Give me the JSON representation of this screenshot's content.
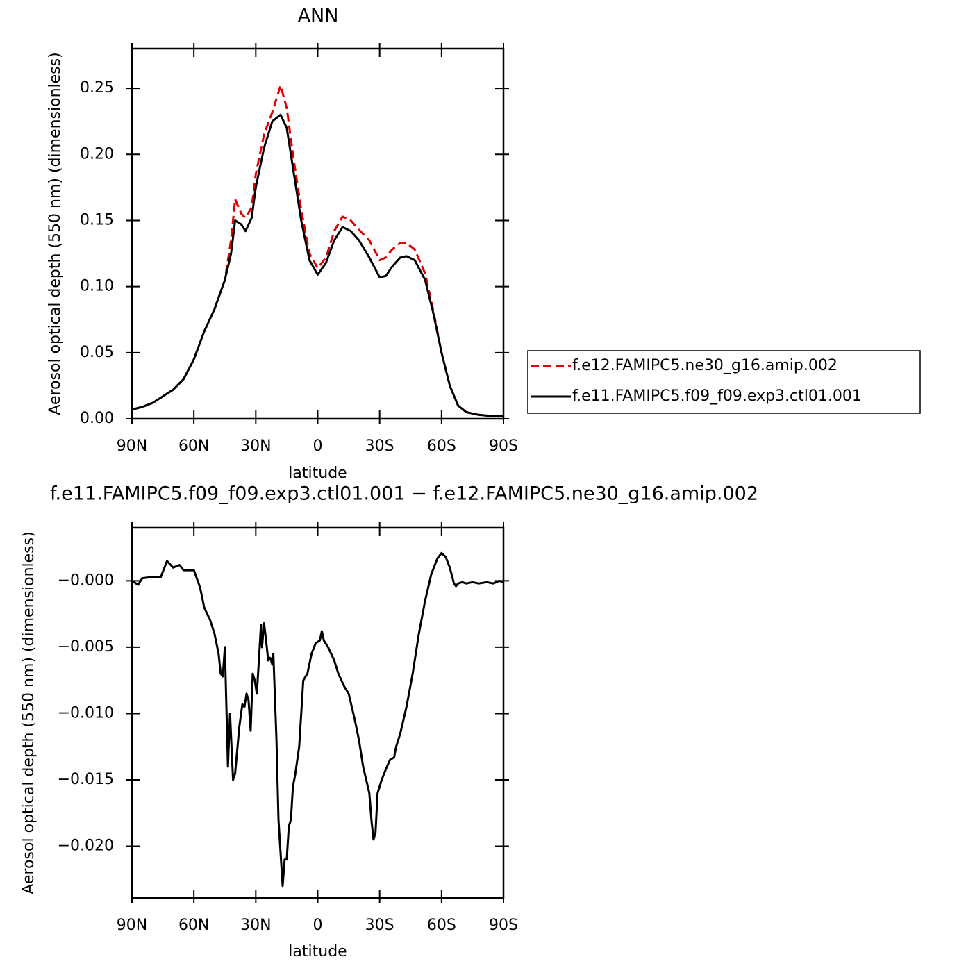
{
  "chart_data": [
    {
      "type": "line",
      "title": "ANN",
      "xlabel": "latitude",
      "ylabel": "Aerosol optical depth (550 nm) (dimensionless)",
      "xlim": [
        90,
        -90
      ],
      "xticks": [
        {
          "value": 90,
          "label": "90N"
        },
        {
          "value": 60,
          "label": "60N"
        },
        {
          "value": 30,
          "label": "30N"
        },
        0,
        {
          "value": -30,
          "label": "30S"
        },
        {
          "value": -60,
          "label": "60S"
        },
        {
          "value": -90,
          "label": "90S"
        }
      ],
      "ylim": [
        0,
        0.28
      ],
      "yticks": [
        {
          "value": 0,
          "label": "0.00"
        },
        {
          "value": 0.05,
          "label": "0.05"
        },
        {
          "value": 0.1,
          "label": "0.10"
        },
        {
          "value": 0.15,
          "label": "0.15"
        },
        {
          "value": 0.2,
          "label": "0.20"
        },
        {
          "value": 0.25,
          "label": "0.25"
        }
      ],
      "x": [
        90,
        85,
        80,
        75,
        70,
        65,
        60,
        55,
        50,
        45,
        42,
        40,
        37,
        35,
        32,
        30,
        26,
        22,
        18,
        15,
        12,
        8,
        4,
        0,
        -4,
        -8,
        -12,
        -16,
        -20,
        -25,
        -30,
        -33,
        -36,
        -40,
        -43,
        -47,
        -52,
        -56,
        -60,
        -64,
        -68,
        -72,
        -78,
        -85,
        -90
      ],
      "legend": "right",
      "series": [
        {
          "name": "f.e12.FAMIPC5.ne30_g16.amip.002",
          "color": "#dd0000",
          "line_style": "dashed",
          "values": [
            0.007,
            0.009,
            0.012,
            0.017,
            0.022,
            0.03,
            0.045,
            0.066,
            0.083,
            0.105,
            0.135,
            0.166,
            0.155,
            0.152,
            0.16,
            0.185,
            0.215,
            0.232,
            0.252,
            0.235,
            0.2,
            0.158,
            0.125,
            0.114,
            0.122,
            0.142,
            0.153,
            0.15,
            0.143,
            0.135,
            0.12,
            0.122,
            0.128,
            0.133,
            0.133,
            0.128,
            0.11,
            0.082,
            0.05,
            0.025,
            0.01,
            0.005,
            0.003,
            0.002,
            0.002
          ]
        },
        {
          "name": "f.e11.FAMIPC5.f09_f09.exp3.ctl01.001",
          "color": "#000000",
          "line_style": "solid",
          "values": [
            0.007,
            0.009,
            0.012,
            0.017,
            0.022,
            0.03,
            0.045,
            0.066,
            0.083,
            0.105,
            0.125,
            0.15,
            0.147,
            0.142,
            0.152,
            0.175,
            0.205,
            0.225,
            0.23,
            0.22,
            0.19,
            0.15,
            0.12,
            0.109,
            0.118,
            0.135,
            0.145,
            0.142,
            0.135,
            0.122,
            0.107,
            0.108,
            0.115,
            0.122,
            0.123,
            0.12,
            0.105,
            0.08,
            0.05,
            0.025,
            0.01,
            0.005,
            0.003,
            0.002,
            0.002
          ]
        }
      ]
    },
    {
      "type": "line",
      "title": "f.e11.FAMIPC5.f09_f09.exp3.ctl01.001 − f.e12.FAMIPC5.ne30_g16.amip.002",
      "xlabel": "latitude",
      "ylabel": "Aerosol optical depth (550 nm) (dimensionless)",
      "xlim": [
        90,
        -90
      ],
      "xticks": [
        {
          "value": 90,
          "label": "90N"
        },
        {
          "value": 60,
          "label": "60N"
        },
        {
          "value": 30,
          "label": "30N"
        },
        0,
        {
          "value": -30,
          "label": "30S"
        },
        {
          "value": -60,
          "label": "60S"
        },
        {
          "value": -90,
          "label": "90S"
        }
      ],
      "ylim": [
        -0.0239,
        0.004
      ],
      "yticks": [
        {
          "value": 0,
          "label": "−0.000"
        },
        {
          "value": -0.005,
          "label": "−0.005"
        },
        {
          "value": -0.01,
          "label": "−0.010"
        },
        {
          "value": -0.015,
          "label": "−0.015"
        },
        {
          "value": -0.02,
          "label": "−0.020"
        }
      ],
      "x": [
        90,
        87,
        85,
        80,
        76,
        73,
        70,
        67,
        65,
        62,
        60,
        57,
        55,
        52,
        50,
        48,
        47,
        46,
        45,
        43.5,
        42.5,
        41,
        40,
        38,
        36.5,
        35.5,
        34.5,
        33.5,
        32.5,
        31.5,
        30.5,
        29.5,
        28.5,
        27.5,
        27,
        26,
        25,
        24,
        23,
        22,
        21.5,
        20,
        19,
        17,
        16,
        15,
        14,
        13,
        12,
        11,
        9,
        7,
        5,
        3,
        1,
        -1,
        -2,
        -3,
        -5,
        -8,
        -10,
        -13,
        -15,
        -18,
        -20,
        -22,
        -25,
        -26,
        -27,
        -28,
        -29,
        -31,
        -33,
        -35,
        -37,
        -38,
        -40,
        -43,
        -46,
        -49,
        -52,
        -55,
        -58,
        -60,
        -62,
        -64,
        -66,
        -67,
        -68,
        -70,
        -72,
        -75,
        -78,
        -82,
        -85,
        -88,
        -90
      ],
      "series": [
        {
          "color": "#000000",
          "line_style": "solid",
          "values": [
            0,
            -0.0003,
            0.0002,
            0.0003,
            0.0003,
            0.0015,
            0.001,
            0.0012,
            0.0008,
            0.0008,
            0.0008,
            -0.0005,
            -0.002,
            -0.003,
            -0.004,
            -0.0055,
            -0.007,
            -0.0072,
            -0.005,
            -0.014,
            -0.01,
            -0.015,
            -0.0145,
            -0.011,
            -0.0093,
            -0.0095,
            -0.0085,
            -0.009,
            -0.0113,
            -0.007,
            -0.0075,
            -0.0085,
            -0.006,
            -0.0033,
            -0.005,
            -0.0032,
            -0.0045,
            -0.006,
            -0.0058,
            -0.0063,
            -0.0055,
            -0.012,
            -0.018,
            -0.023,
            -0.021,
            -0.021,
            -0.0185,
            -0.018,
            -0.0155,
            -0.0147,
            -0.0125,
            -0.0075,
            -0.007,
            -0.0055,
            -0.0047,
            -0.0045,
            -0.0038,
            -0.0045,
            -0.005,
            -0.006,
            -0.007,
            -0.008,
            -0.0085,
            -0.0105,
            -0.012,
            -0.014,
            -0.016,
            -0.018,
            -0.0195,
            -0.019,
            -0.016,
            -0.015,
            -0.0142,
            -0.0135,
            -0.0133,
            -0.0125,
            -0.0115,
            -0.0095,
            -0.007,
            -0.004,
            -0.0015,
            0.0005,
            0.0017,
            0.0021,
            0.0018,
            0.001,
            -0.0002,
            -0.0004,
            -0.0002,
            -0.0001,
            -0.0002,
            -0.0001,
            -0.0002,
            -0.0001,
            -0.0002,
            0,
            -0.0001
          ]
        }
      ]
    }
  ]
}
